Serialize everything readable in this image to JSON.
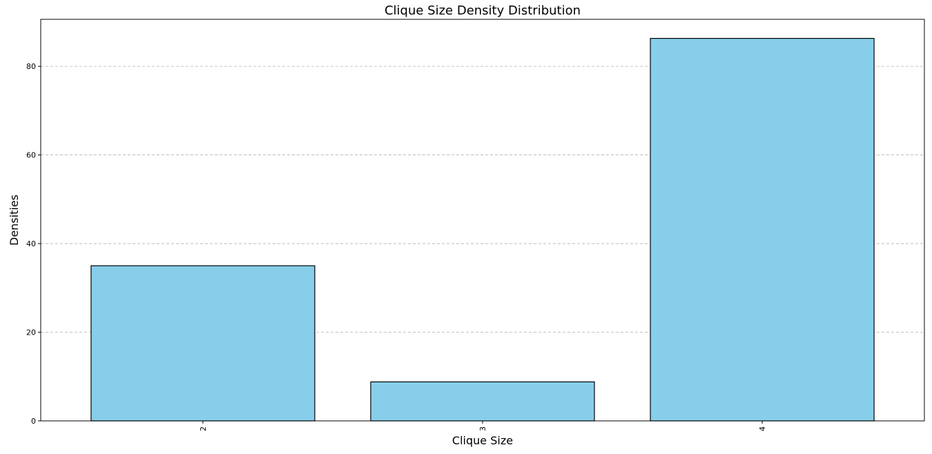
{
  "chart_data": {
    "type": "bar",
    "title": "Clique Size Density Distribution",
    "xlabel": "Clique Size",
    "ylabel": "Densities",
    "categories": [
      "2",
      "3",
      "4"
    ],
    "values": [
      35,
      8.8,
      86.3
    ],
    "ylim": [
      0,
      90.6
    ],
    "yticks": [
      0,
      20,
      40,
      60,
      80
    ],
    "grid": "y-dashed",
    "x_tick_rotation": 90,
    "colors": {
      "bar_fill": "#87CEEB",
      "bar_edge": "#000000",
      "grid": "#b0b0b0"
    }
  }
}
